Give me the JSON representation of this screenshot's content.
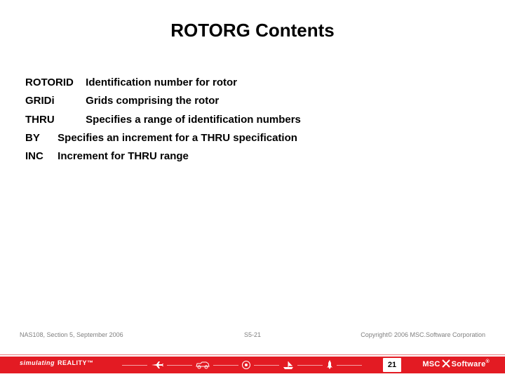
{
  "title": {
    "text": "ROTORG Contents",
    "fontsize": 26,
    "color": "#000000"
  },
  "content": {
    "fontsize": 15,
    "color": "#000000",
    "rows": [
      {
        "term": "ROTORID",
        "term_width": 82,
        "desc": "Identification number for rotor"
      },
      {
        "term": "GRIDi",
        "term_width": 82,
        "desc": "Grids comprising the rotor"
      },
      {
        "term": "THRU",
        "term_width": 82,
        "desc": "Specifies a range of identification numbers"
      },
      {
        "term": "BY",
        "term_width": 42,
        "desc": "Specifies an increment for a THRU specification"
      },
      {
        "term": "INC",
        "term_width": 42,
        "desc": "Increment for THRU range"
      }
    ]
  },
  "footer": {
    "left": "NAS108, Section 5, September 2006",
    "center": "S5-21",
    "right": "Copyright© 2006 MSC.Software Corporation",
    "fontsize": 9,
    "color": "#808080"
  },
  "redbar": {
    "color": "#e31b23",
    "simulating": "simulating",
    "reality": "REALITY™",
    "page_number": "21",
    "logo_pre": "MSC",
    "logo_post": "Software",
    "icon_color": "#ffffff"
  }
}
